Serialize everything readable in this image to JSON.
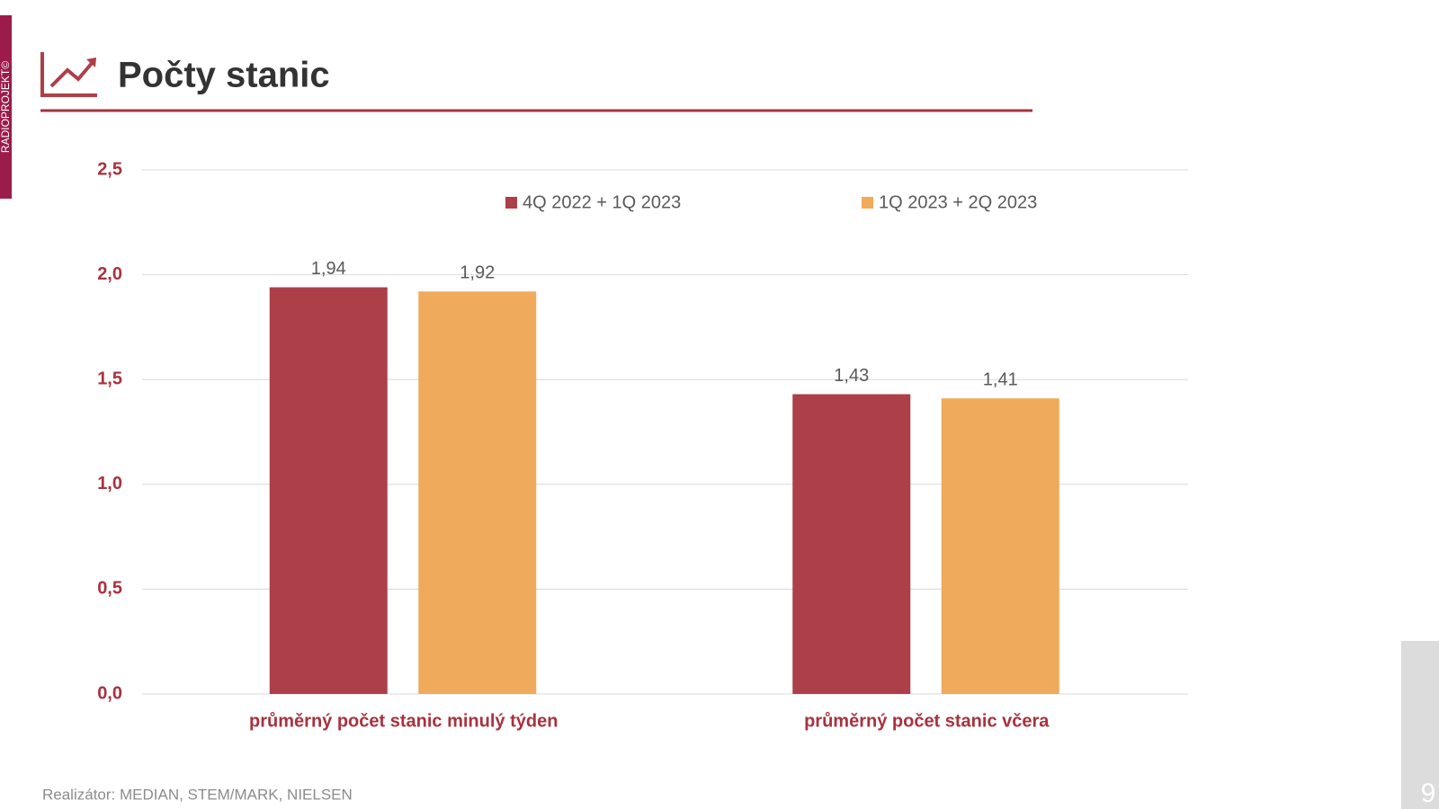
{
  "side_label": "RADIOPROJEKT©",
  "footer": "Realizátor: MEDIAN, STEM/MARK, NIELSEN",
  "page_number": "9",
  "chart_data": {
    "type": "bar",
    "title": "Počty stanic",
    "categories": [
      "průměrný počet stanic minulý týden",
      "průměrný počet stanic včera"
    ],
    "series": [
      {
        "name": "4Q 2022 + 1Q 2023",
        "color": "#ad3f48",
        "values": [
          1.94,
          1.43
        ],
        "value_labels": [
          "1,94",
          "1,43"
        ]
      },
      {
        "name": "1Q 2023 + 2Q 2023",
        "color": "#f0aa5c",
        "values": [
          1.92,
          1.41
        ],
        "value_labels": [
          "1,92",
          "1,41"
        ]
      }
    ],
    "ylim": [
      0,
      2.5
    ],
    "yticks": [
      {
        "value": 0,
        "label": "0,0"
      },
      {
        "value": 0.5,
        "label": "0,5"
      },
      {
        "value": 1,
        "label": "1,0"
      },
      {
        "value": 1.5,
        "label": "1,5"
      },
      {
        "value": 2,
        "label": "2,0"
      },
      {
        "value": 2.5,
        "label": "2,5"
      }
    ],
    "grid": true,
    "legend": "top"
  }
}
